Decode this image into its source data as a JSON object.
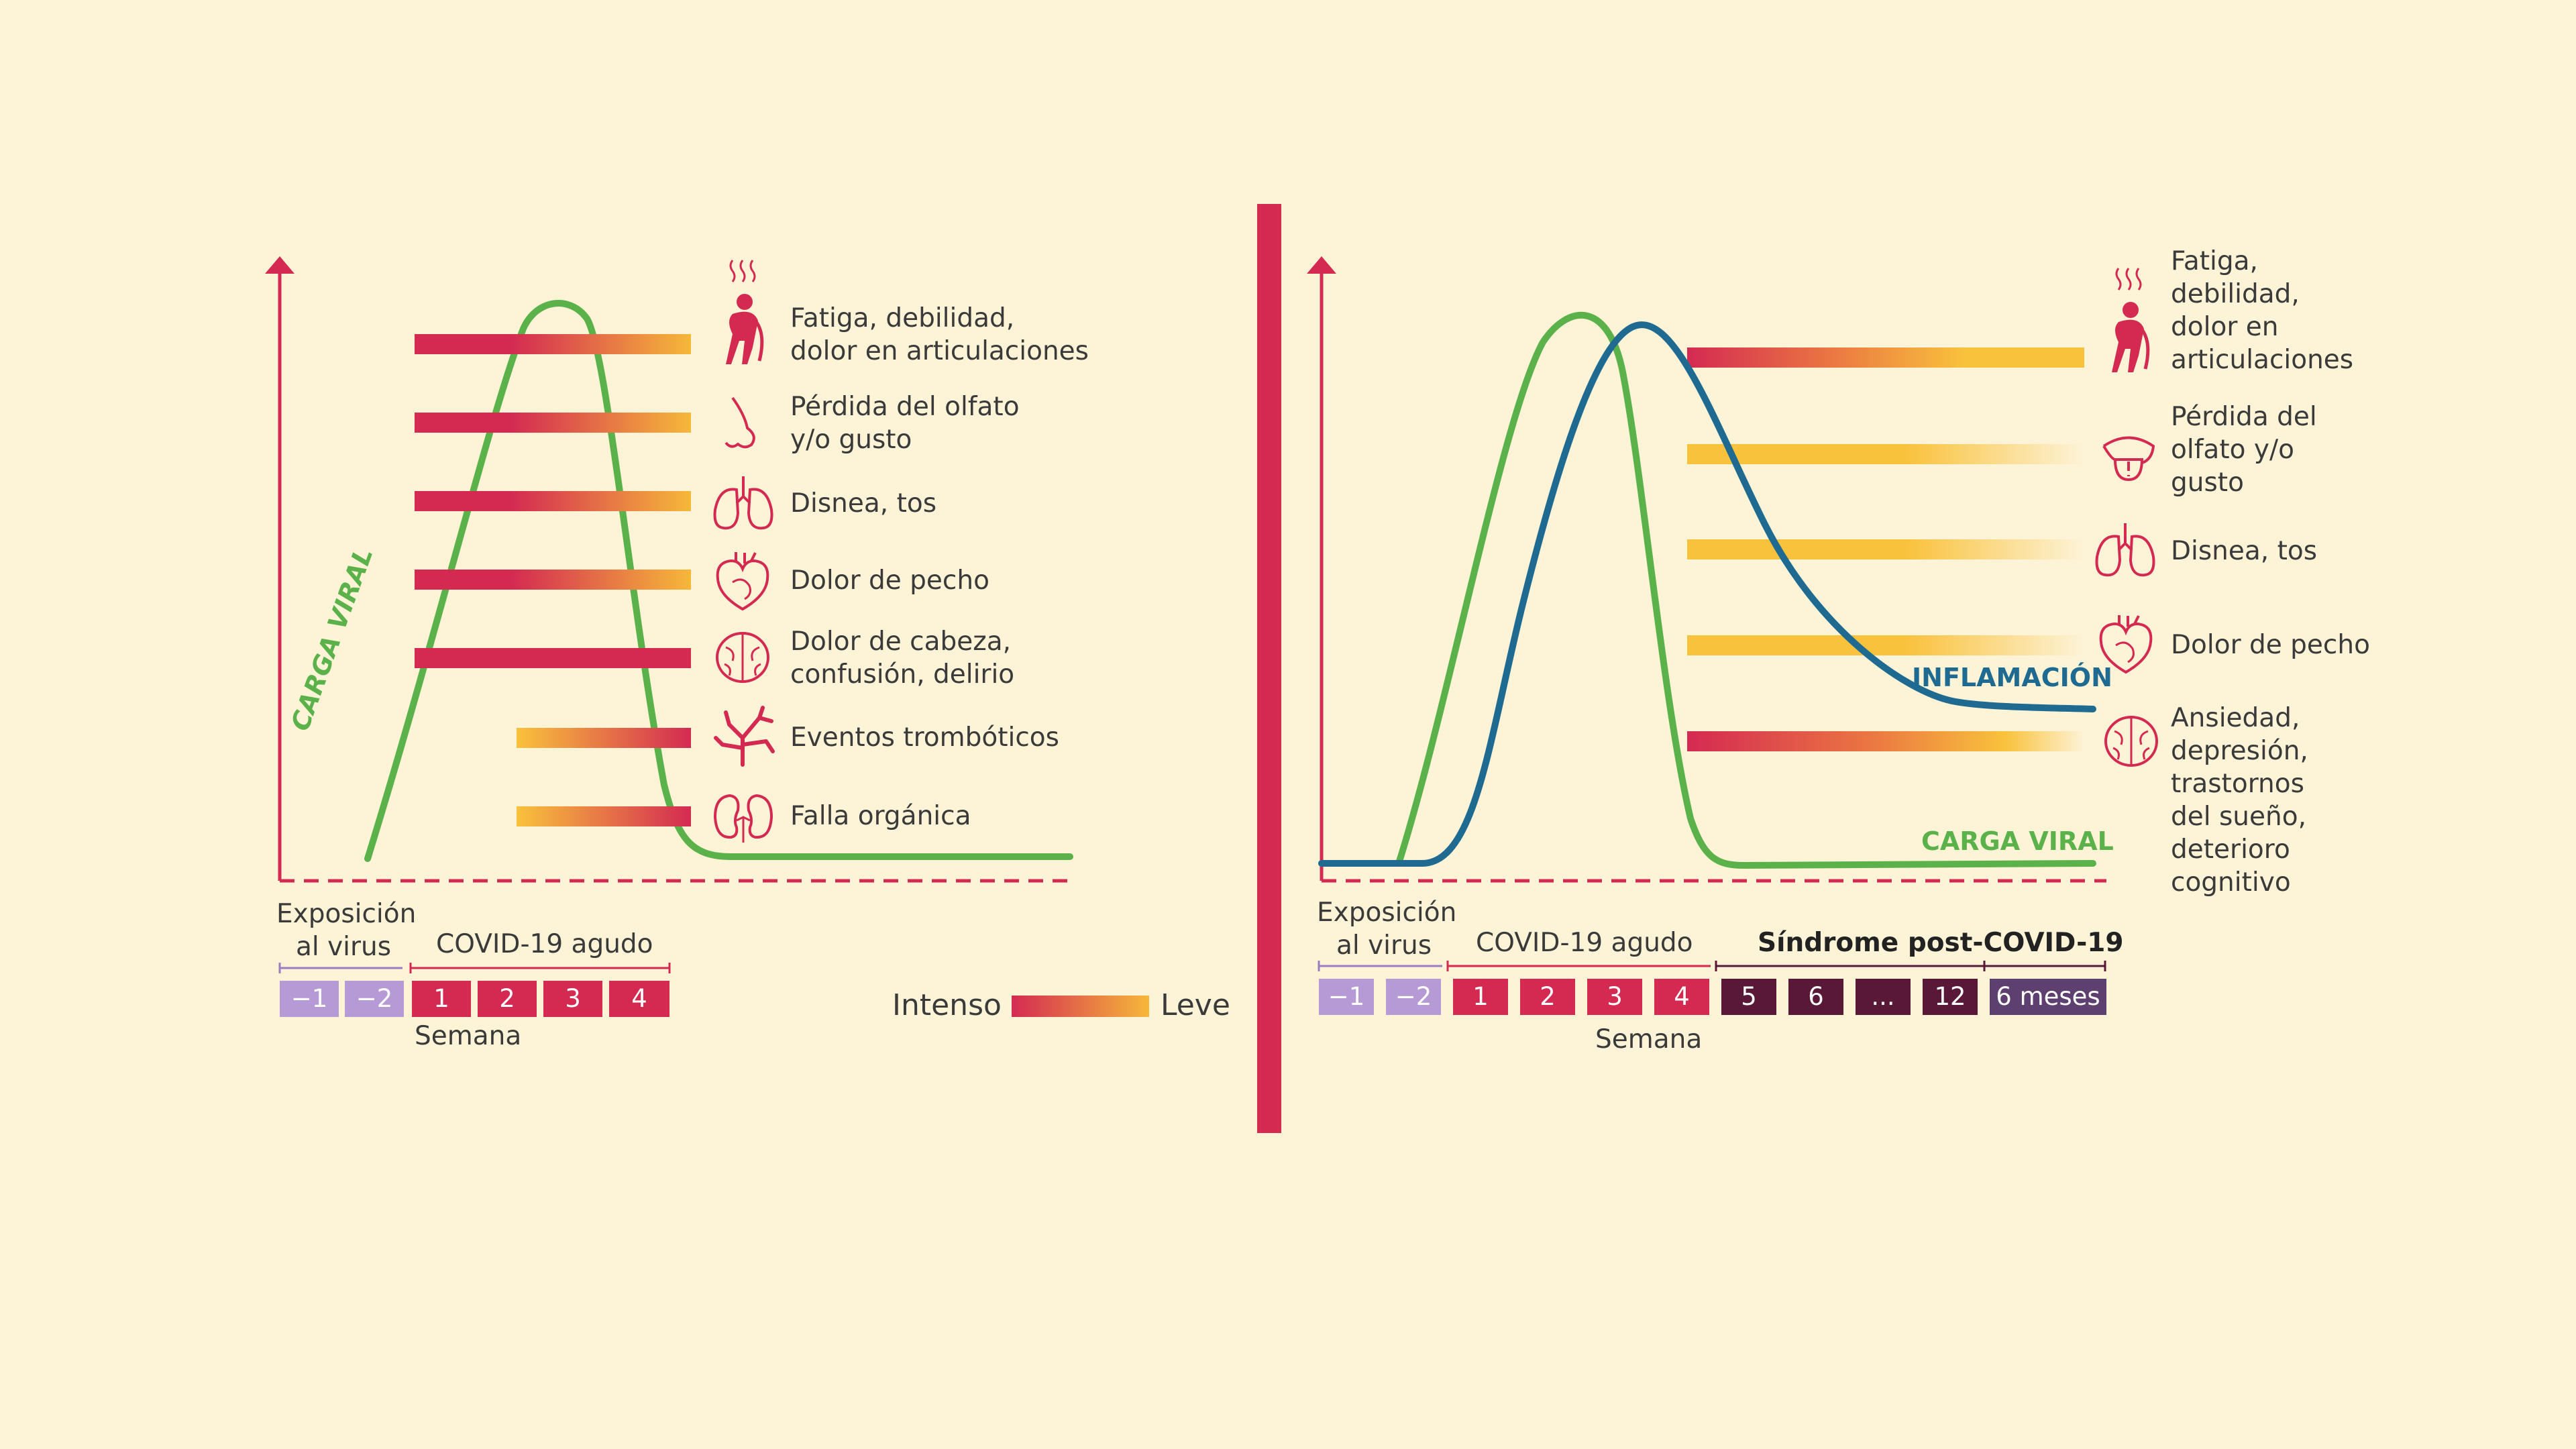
{
  "colors": {
    "background": "#fdf3d7",
    "crimson": "#d42a52",
    "yellow": "#f9c23c",
    "green": "#5cb24a",
    "blue": "#1f6a91",
    "lavender": "#b69ad6",
    "dark_purple": "#5a1838",
    "muted_purple": "#5d3f70"
  },
  "left": {
    "viral_load_label": "CARGA VIRAL",
    "symptoms": [
      {
        "label_lines": [
          "Fatiga, debilidad,",
          "dolor en articulaciones"
        ],
        "icon": "fatigue-icon",
        "intensity": "intense-to-mild"
      },
      {
        "label_lines": [
          "Pérdida del olfato",
          "y/o gusto"
        ],
        "icon": "nose-icon",
        "intensity": "intense-to-mild"
      },
      {
        "label_lines": [
          "Disnea, tos"
        ],
        "icon": "lungs-icon",
        "intensity": "intense-to-mild"
      },
      {
        "label_lines": [
          "Dolor de pecho"
        ],
        "icon": "heart-icon",
        "intensity": "intense-to-mild"
      },
      {
        "label_lines": [
          "Dolor de cabeza,",
          "confusión, delirio"
        ],
        "icon": "brain-icon",
        "intensity": "intense"
      },
      {
        "label_lines": [
          "Eventos trombóticos"
        ],
        "icon": "blood-vessels-icon",
        "intensity": "mild-to-intense"
      },
      {
        "label_lines": [
          "Falla orgánica"
        ],
        "icon": "kidneys-icon",
        "intensity": "mild-to-intense"
      }
    ],
    "phase_exposure": [
      "Exposición",
      "al virus"
    ],
    "phase_acute": "COVID-19 agudo",
    "weeks": [
      "−1",
      "−2",
      "1",
      "2",
      "3",
      "4"
    ],
    "weeks_label": "Semana",
    "legend": {
      "intense": "Intenso",
      "mild": "Leve"
    }
  },
  "right": {
    "inflammation_label": "INFLAMACIÓN",
    "viral_load_label": "CARGA VIRAL",
    "symptoms": [
      {
        "label_lines": [
          "Fatiga,",
          "debilidad,",
          "dolor en",
          "articulaciones"
        ],
        "icon": "fatigue-icon"
      },
      {
        "label_lines": [
          "Pérdida del",
          "olfato y/o",
          "gusto"
        ],
        "icon": "tongue-icon"
      },
      {
        "label_lines": [
          "Disnea, tos"
        ],
        "icon": "lungs-icon"
      },
      {
        "label_lines": [
          "Dolor de pecho"
        ],
        "icon": "heart-icon"
      },
      {
        "label_lines": [
          "Ansiedad,",
          "depresión,",
          "trastornos",
          "del sueño,",
          "deterioro",
          "cognitivo"
        ],
        "icon": "brain-icon"
      }
    ],
    "phase_exposure": [
      "Exposición",
      "al virus"
    ],
    "phase_acute": "COVID-19 agudo",
    "phase_post": "Síndrome post-COVID-19",
    "weeks": [
      "−1",
      "−2",
      "1",
      "2",
      "3",
      "4",
      "5",
      "6",
      "...",
      "12",
      "6 meses"
    ],
    "weeks_label": "Semana"
  }
}
